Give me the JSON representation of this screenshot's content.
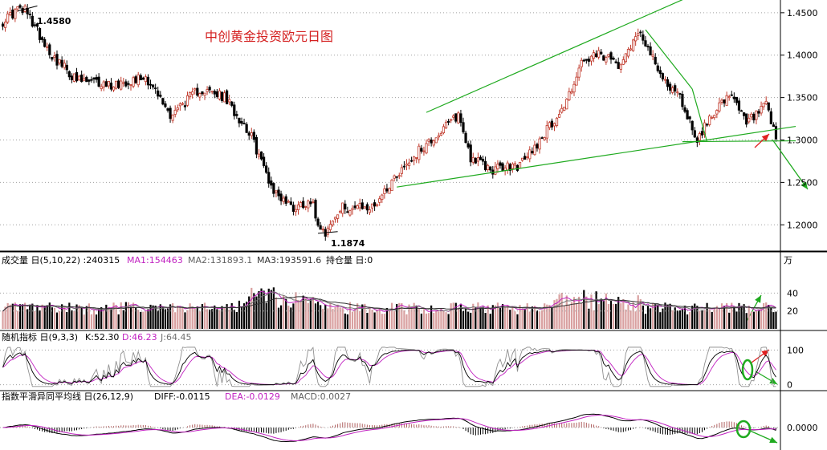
{
  "chart_data": {
    "type": "candlestick",
    "title": "中创黄金投资欧元日图",
    "colors": {
      "up": "#c0392b",
      "down": "#000000",
      "ma_pink": "#c020c0",
      "ma_dark": "#303030",
      "trend_green": "#1faa1f",
      "arrow_red": "#e02020",
      "grid": "#a0a0a0"
    },
    "price_panel": {
      "ylim": [
        1.17,
        1.465
      ],
      "ticks": [
        "1.4500",
        "1.4000",
        "1.3500",
        "1.3000",
        "1.2500",
        "1.2000"
      ],
      "tick_values": [
        1.45,
        1.4,
        1.35,
        1.3,
        1.25,
        1.2
      ],
      "annotations": [
        {
          "text": "1.4580",
          "value": 1.458
        },
        {
          "text": "1.1874",
          "value": 1.1874
        }
      ],
      "anchors": [
        {
          "x": 0,
          "y": 1.44
        },
        {
          "x": 8,
          "y": 1.458
        },
        {
          "x": 20,
          "y": 1.4
        },
        {
          "x": 30,
          "y": 1.37
        },
        {
          "x": 44,
          "y": 1.365
        },
        {
          "x": 58,
          "y": 1.375
        },
        {
          "x": 68,
          "y": 1.33
        },
        {
          "x": 80,
          "y": 1.36
        },
        {
          "x": 90,
          "y": 1.35
        },
        {
          "x": 100,
          "y": 1.31
        },
        {
          "x": 110,
          "y": 1.24
        },
        {
          "x": 118,
          "y": 1.22
        },
        {
          "x": 125,
          "y": 1.23
        },
        {
          "x": 130,
          "y": 1.1874
        },
        {
          "x": 138,
          "y": 1.22
        },
        {
          "x": 150,
          "y": 1.22
        },
        {
          "x": 160,
          "y": 1.26
        },
        {
          "x": 170,
          "y": 1.29
        },
        {
          "x": 178,
          "y": 1.31
        },
        {
          "x": 185,
          "y": 1.33
        },
        {
          "x": 190,
          "y": 1.28
        },
        {
          "x": 198,
          "y": 1.265
        },
        {
          "x": 210,
          "y": 1.27
        },
        {
          "x": 218,
          "y": 1.3
        },
        {
          "x": 228,
          "y": 1.34
        },
        {
          "x": 235,
          "y": 1.39
        },
        {
          "x": 242,
          "y": 1.4
        },
        {
          "x": 250,
          "y": 1.39
        },
        {
          "x": 259,
          "y": 1.43
        },
        {
          "x": 266,
          "y": 1.38
        },
        {
          "x": 275,
          "y": 1.35
        },
        {
          "x": 282,
          "y": 1.3
        },
        {
          "x": 290,
          "y": 1.34
        },
        {
          "x": 296,
          "y": 1.35
        },
        {
          "x": 302,
          "y": 1.32
        },
        {
          "x": 310,
          "y": 1.34
        },
        {
          "x": 314,
          "y": 1.3
        }
      ],
      "bar_count": 315
    },
    "volume_panel": {
      "legend": [
        "成交量 日(5,10,22) :240315",
        "MA1:154463",
        "MA2:131893.1",
        "MA3:193591.6",
        "持仓量 日:0"
      ],
      "unit": "万",
      "ticks": [
        "40",
        "20"
      ],
      "ylim": [
        0,
        70
      ]
    },
    "kdj_panel": {
      "legend": [
        "随机指标 日(9,3,3)",
        "K:52.30",
        "D:46.23",
        "J:64.45"
      ],
      "ticks": [
        "100",
        "0"
      ],
      "ylim": [
        -10,
        110
      ]
    },
    "macd_panel": {
      "legend": [
        "指数平滑异同平均线 日(26,12,9)",
        "DIFF:-0.0115",
        "DEA:-0.0129",
        "MACD:0.0027"
      ],
      "ticks": [
        "0.0000"
      ]
    }
  }
}
